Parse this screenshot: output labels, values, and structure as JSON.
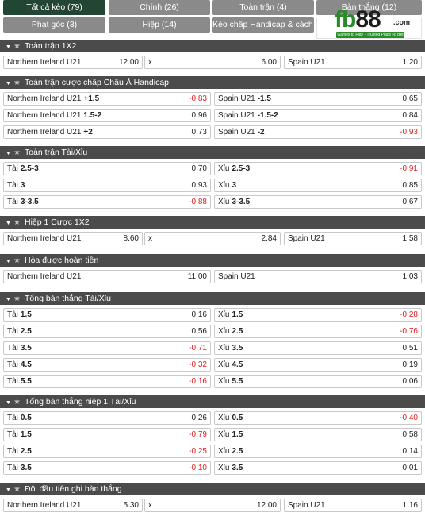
{
  "tabs": [
    {
      "label": "Tất cả kèo (79)",
      "active": true
    },
    {
      "label": "Chính (26)",
      "active": false
    },
    {
      "label": "Toàn trận (4)",
      "active": false
    },
    {
      "label": "Bàn thắng (12)",
      "active": false
    },
    {
      "label": "Phạt góc (3)",
      "active": false
    },
    {
      "label": "Hiệp (14)",
      "active": false
    },
    {
      "label": "Kèo chấp Handicap & cách biệt (3)",
      "active": false
    }
  ],
  "logo": {
    "mark_a": "fb",
    "mark_b": "88",
    "domain": ".com",
    "tagline": "Games to Play - Trusted Place To Bet"
  },
  "sections": [
    {
      "title": "Toàn trận 1X2",
      "rows": [
        [
          {
            "label": "Northern Ireland U21",
            "odds": "12.00"
          },
          {
            "label": "x",
            "odds": "6.00"
          },
          {
            "label": "Spain U21",
            "odds": "1.20"
          }
        ]
      ]
    },
    {
      "title": "Toàn trận cược chấp Châu Á Handicap",
      "rows": [
        [
          {
            "label": "Northern Ireland U21",
            "line": "+1.5",
            "odds": "-0.83"
          },
          {
            "label": "Spain U21",
            "line": "-1.5",
            "odds": "0.65"
          }
        ],
        [
          {
            "label": "Northern Ireland U21",
            "line": "1.5-2",
            "odds": "0.96"
          },
          {
            "label": "Spain U21",
            "line": "-1.5-2",
            "odds": "0.84"
          }
        ],
        [
          {
            "label": "Northern Ireland U21",
            "line": "+2",
            "odds": "0.73"
          },
          {
            "label": "Spain U21",
            "line": "-2",
            "odds": "-0.93"
          }
        ]
      ]
    },
    {
      "title": "Toàn trận Tài/Xỉu",
      "rows": [
        [
          {
            "label": "Tài",
            "line": "2.5-3",
            "odds": "0.70"
          },
          {
            "label": "Xỉu",
            "line": "2.5-3",
            "odds": "-0.91"
          }
        ],
        [
          {
            "label": "Tài",
            "line": "3",
            "odds": "0.93"
          },
          {
            "label": "Xỉu",
            "line": "3",
            "odds": "0.85"
          }
        ],
        [
          {
            "label": "Tài",
            "line": "3-3.5",
            "odds": "-0.88"
          },
          {
            "label": "Xỉu",
            "line": "3-3.5",
            "odds": "0.67"
          }
        ]
      ]
    },
    {
      "title": "Hiệp 1 Cược 1X2",
      "rows": [
        [
          {
            "label": "Northern Ireland U21",
            "odds": "8.60"
          },
          {
            "label": "x",
            "odds": "2.84"
          },
          {
            "label": "Spain U21",
            "odds": "1.58"
          }
        ]
      ]
    },
    {
      "title": "Hòa được hoàn tiền",
      "rows": [
        [
          {
            "label": "Northern Ireland U21",
            "odds": "11.00"
          },
          {
            "label": "Spain U21",
            "odds": "1.03"
          }
        ]
      ]
    },
    {
      "title": "Tổng bàn thắng Tài/Xỉu",
      "rows": [
        [
          {
            "label": "Tài",
            "line": "1.5",
            "odds": "0.16"
          },
          {
            "label": "Xỉu",
            "line": "1.5",
            "odds": "-0.28"
          }
        ],
        [
          {
            "label": "Tài",
            "line": "2.5",
            "odds": "0.56"
          },
          {
            "label": "Xỉu",
            "line": "2.5",
            "odds": "-0.76"
          }
        ],
        [
          {
            "label": "Tài",
            "line": "3.5",
            "odds": "-0.71"
          },
          {
            "label": "Xỉu",
            "line": "3.5",
            "odds": "0.51"
          }
        ],
        [
          {
            "label": "Tài",
            "line": "4.5",
            "odds": "-0.32"
          },
          {
            "label": "Xỉu",
            "line": "4.5",
            "odds": "0.19"
          }
        ],
        [
          {
            "label": "Tài",
            "line": "5.5",
            "odds": "-0.16"
          },
          {
            "label": "Xỉu",
            "line": "5.5",
            "odds": "0.06"
          }
        ]
      ]
    },
    {
      "title": "Tổng bàn thắng hiệp 1 Tài/Xỉu",
      "rows": [
        [
          {
            "label": "Tài",
            "line": "0.5",
            "odds": "0.26"
          },
          {
            "label": "Xỉu",
            "line": "0.5",
            "odds": "-0.40"
          }
        ],
        [
          {
            "label": "Tài",
            "line": "1.5",
            "odds": "-0.79"
          },
          {
            "label": "Xỉu",
            "line": "1.5",
            "odds": "0.58"
          }
        ],
        [
          {
            "label": "Tài",
            "line": "2.5",
            "odds": "-0.25"
          },
          {
            "label": "Xỉu",
            "line": "2.5",
            "odds": "0.14"
          }
        ],
        [
          {
            "label": "Tài",
            "line": "3.5",
            "odds": "-0.10"
          },
          {
            "label": "Xỉu",
            "line": "3.5",
            "odds": "0.01"
          }
        ]
      ]
    },
    {
      "title": "Đội đầu tiên ghi bàn thắng",
      "rows": [
        [
          {
            "label": "Northern Ireland U21",
            "odds": "5.30"
          },
          {
            "label": "x",
            "odds": "12.00"
          },
          {
            "label": "Spain U21",
            "odds": "1.16"
          }
        ]
      ]
    }
  ]
}
